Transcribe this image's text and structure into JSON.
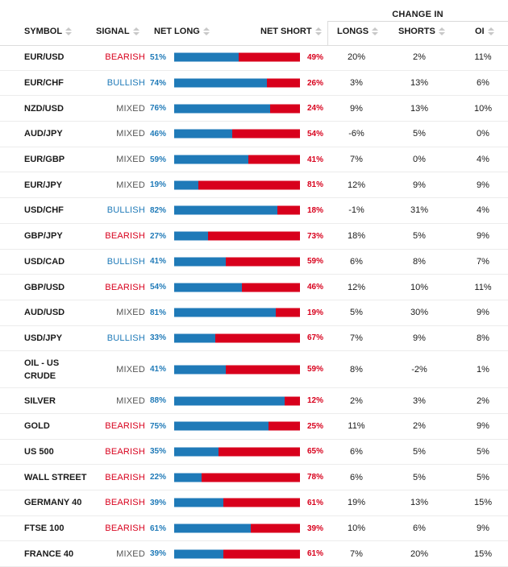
{
  "colors": {
    "bullish": "#1f7ab8",
    "bearish": "#d8001c",
    "mixed": "#555555",
    "long_bar": "#1f7ab8",
    "short_bar": "#d8001c"
  },
  "table": {
    "group_header": "CHANGE IN",
    "headers": {
      "symbol": "SYMBOL",
      "signal": "SIGNAL",
      "net_long": "NET LONG",
      "net_short": "NET SHORT",
      "longs": "LONGS",
      "shorts": "SHORTS",
      "oi": "OI"
    },
    "rows": [
      {
        "symbol": "EUR/USD",
        "signal": "BEARISH",
        "net_long": "51%",
        "net_short": "49%",
        "long_pct": 51,
        "longs": "20%",
        "shorts": "2%",
        "oi": "11%"
      },
      {
        "symbol": "EUR/CHF",
        "signal": "BULLISH",
        "net_long": "74%",
        "net_short": "26%",
        "long_pct": 74,
        "longs": "3%",
        "shorts": "13%",
        "oi": "6%"
      },
      {
        "symbol": "NZD/USD",
        "signal": "MIXED",
        "net_long": "76%",
        "net_short": "24%",
        "long_pct": 76,
        "longs": "9%",
        "shorts": "13%",
        "oi": "10%"
      },
      {
        "symbol": "AUD/JPY",
        "signal": "MIXED",
        "net_long": "46%",
        "net_short": "54%",
        "long_pct": 46,
        "longs": "-6%",
        "shorts": "5%",
        "oi": "0%"
      },
      {
        "symbol": "EUR/GBP",
        "signal": "MIXED",
        "net_long": "59%",
        "net_short": "41%",
        "long_pct": 59,
        "longs": "7%",
        "shorts": "0%",
        "oi": "4%"
      },
      {
        "symbol": "EUR/JPY",
        "signal": "MIXED",
        "net_long": "19%",
        "net_short": "81%",
        "long_pct": 19,
        "longs": "12%",
        "shorts": "9%",
        "oi": "9%"
      },
      {
        "symbol": "USD/CHF",
        "signal": "BULLISH",
        "net_long": "82%",
        "net_short": "18%",
        "long_pct": 82,
        "longs": "-1%",
        "shorts": "31%",
        "oi": "4%"
      },
      {
        "symbol": "GBP/JPY",
        "signal": "BEARISH",
        "net_long": "27%",
        "net_short": "73%",
        "long_pct": 27,
        "longs": "18%",
        "shorts": "5%",
        "oi": "9%"
      },
      {
        "symbol": "USD/CAD",
        "signal": "BULLISH",
        "net_long": "41%",
        "net_short": "59%",
        "long_pct": 41,
        "longs": "6%",
        "shorts": "8%",
        "oi": "7%"
      },
      {
        "symbol": "GBP/USD",
        "signal": "BEARISH",
        "net_long": "54%",
        "net_short": "46%",
        "long_pct": 54,
        "longs": "12%",
        "shorts": "10%",
        "oi": "11%"
      },
      {
        "symbol": "AUD/USD",
        "signal": "MIXED",
        "net_long": "81%",
        "net_short": "19%",
        "long_pct": 81,
        "longs": "5%",
        "shorts": "30%",
        "oi": "9%"
      },
      {
        "symbol": "USD/JPY",
        "signal": "BULLISH",
        "net_long": "33%",
        "net_short": "67%",
        "long_pct": 33,
        "longs": "7%",
        "shorts": "9%",
        "oi": "8%"
      },
      {
        "symbol": "OIL - US CRUDE",
        "signal": "MIXED",
        "net_long": "41%",
        "net_short": "59%",
        "long_pct": 41,
        "longs": "8%",
        "shorts": "-2%",
        "oi": "1%"
      },
      {
        "symbol": "SILVER",
        "signal": "MIXED",
        "net_long": "88%",
        "net_short": "12%",
        "long_pct": 88,
        "longs": "2%",
        "shorts": "3%",
        "oi": "2%"
      },
      {
        "symbol": "GOLD",
        "signal": "BEARISH",
        "net_long": "75%",
        "net_short": "25%",
        "long_pct": 75,
        "longs": "11%",
        "shorts": "2%",
        "oi": "9%"
      },
      {
        "symbol": "US 500",
        "signal": "BEARISH",
        "net_long": "35%",
        "net_short": "65%",
        "long_pct": 35,
        "longs": "6%",
        "shorts": "5%",
        "oi": "5%"
      },
      {
        "symbol": "WALL STREET",
        "signal": "BEARISH",
        "net_long": "22%",
        "net_short": "78%",
        "long_pct": 22,
        "longs": "6%",
        "shorts": "5%",
        "oi": "5%"
      },
      {
        "symbol": "GERMANY 40",
        "signal": "BEARISH",
        "net_long": "39%",
        "net_short": "61%",
        "long_pct": 39,
        "longs": "19%",
        "shorts": "13%",
        "oi": "15%"
      },
      {
        "symbol": "FTSE 100",
        "signal": "BEARISH",
        "net_long": "61%",
        "net_short": "39%",
        "long_pct": 61,
        "longs": "10%",
        "shorts": "6%",
        "oi": "9%"
      },
      {
        "symbol": "FRANCE 40",
        "signal": "MIXED",
        "net_long": "39%",
        "net_short": "61%",
        "long_pct": 39,
        "longs": "7%",
        "shorts": "20%",
        "oi": "15%"
      }
    ]
  }
}
